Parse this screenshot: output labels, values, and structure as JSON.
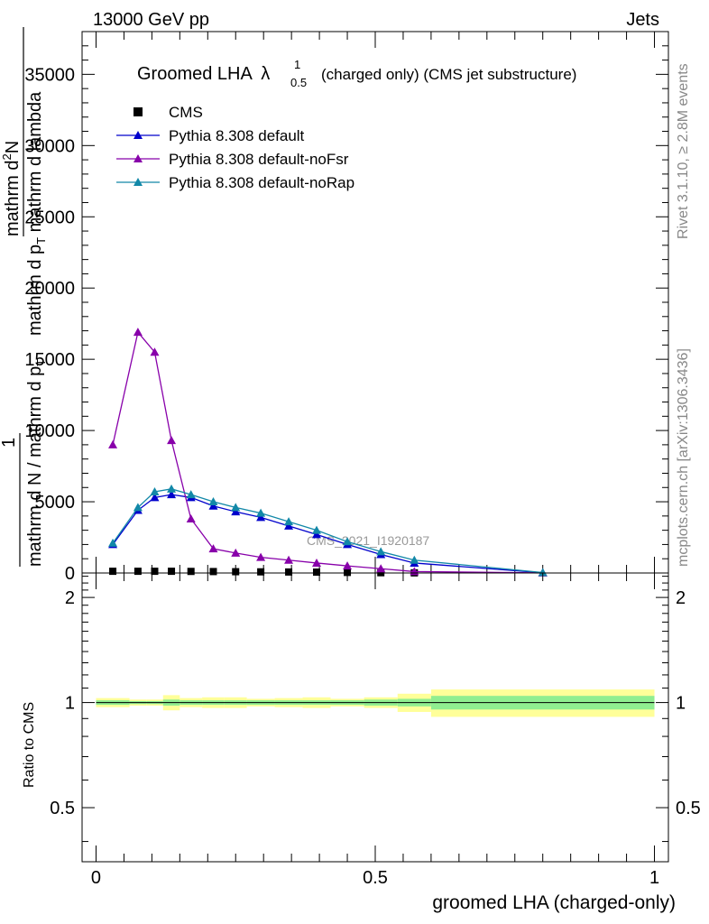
{
  "header": {
    "energy": "13000 GeV pp",
    "category": "Jets"
  },
  "side_labels": {
    "rivet": "Rivet 3.1.10, ≥ 2.8M events",
    "mcplots": "mcplots.cern.ch [arXiv:1306.3436]"
  },
  "watermark": "CMS_2021_I1920187",
  "chart_data": [
    {
      "type": "line",
      "title_main": "Groomed LHA",
      "title_lambda": "λ",
      "title_sup": "1",
      "title_sub": "0.5",
      "title_rest": "(charged only) (CMS jet substructure)",
      "ylabel": {
        "line1_num": "mathrm d",
        "line1_num_sup": "2",
        "line1_num_end": "N",
        "line2_den": "mathrm d p",
        "line2_den_sub": "T",
        "line2_den_end": " mathrm d lambda",
        "frac_num": "1",
        "frac_den": "mathrm d N / mathrm d p",
        "frac_den_sub": "T"
      },
      "ylim": [
        0,
        38000
      ],
      "yticks": [
        0,
        5000,
        10000,
        15000,
        20000,
        25000,
        30000,
        35000
      ],
      "ytick_labels": [
        "0",
        "5000",
        "10000",
        "15000",
        "20000",
        "25000",
        "30000",
        "35000"
      ],
      "xlim": [
        -0.025,
        1.025
      ],
      "x": [
        0.03,
        0.075,
        0.105,
        0.135,
        0.17,
        0.21,
        0.25,
        0.295,
        0.345,
        0.395,
        0.45,
        0.51,
        0.57,
        0.8
      ],
      "series": [
        {
          "name": "CMS",
          "color": "#000000",
          "marker": "square",
          "values": [
            120,
            120,
            120,
            120,
            110,
            100,
            90,
            80,
            70,
            60,
            40,
            20,
            10,
            0
          ]
        },
        {
          "name": "Pythia 8.308 default",
          "color": "#0000cc",
          "marker": "triangle",
          "values": [
            2000,
            4400,
            5300,
            5500,
            5300,
            4700,
            4300,
            3900,
            3300,
            2700,
            2000,
            1300,
            700,
            20
          ]
        },
        {
          "name": "Pythia 8.308 default-noFsr",
          "color": "#8800aa",
          "marker": "triangle",
          "values": [
            9000,
            16900,
            15500,
            9300,
            3800,
            1700,
            1400,
            1100,
            900,
            700,
            500,
            300,
            100,
            5
          ]
        },
        {
          "name": "Pythia 8.308 default-noRap",
          "color": "#1288a8",
          "marker": "triangle",
          "values": [
            2100,
            4600,
            5700,
            5900,
            5500,
            5000,
            4600,
            4200,
            3600,
            3000,
            2200,
            1500,
            900,
            30
          ]
        }
      ]
    },
    {
      "type": "area",
      "ylabel": "Ratio to CMS",
      "xlabel": "groomed LHA (charged-only)",
      "ylim": [
        0.35,
        2.35
      ],
      "yticks": [
        0.5,
        1,
        2
      ],
      "ytick_labels": [
        "0.5",
        "1",
        "2"
      ],
      "xticks": [
        0,
        0.5,
        1
      ],
      "xtick_labels": [
        "0",
        "0.5",
        "1"
      ],
      "reference": 1,
      "bin_edges": [
        0,
        0.06,
        0.09,
        0.12,
        0.15,
        0.19,
        0.23,
        0.27,
        0.32,
        0.37,
        0.42,
        0.48,
        0.54,
        0.6,
        1.0
      ],
      "stat_band": {
        "color": "#90ee90",
        "lower": [
          0.985,
          0.99,
          0.99,
          0.98,
          0.985,
          0.985,
          0.985,
          0.985,
          0.985,
          0.985,
          0.985,
          0.98,
          0.975,
          0.955
        ],
        "upper": [
          1.015,
          1.01,
          1.01,
          1.02,
          1.015,
          1.015,
          1.015,
          1.015,
          1.015,
          1.015,
          1.015,
          1.02,
          1.025,
          1.045
        ]
      },
      "total_band": {
        "color": "#ffff99",
        "lower": [
          0.97,
          0.98,
          0.98,
          0.95,
          0.97,
          0.965,
          0.965,
          0.975,
          0.97,
          0.965,
          0.975,
          0.965,
          0.94,
          0.91
        ],
        "upper": [
          1.03,
          1.02,
          1.02,
          1.05,
          1.03,
          1.035,
          1.035,
          1.025,
          1.03,
          1.035,
          1.025,
          1.035,
          1.06,
          1.09
        ]
      }
    }
  ]
}
